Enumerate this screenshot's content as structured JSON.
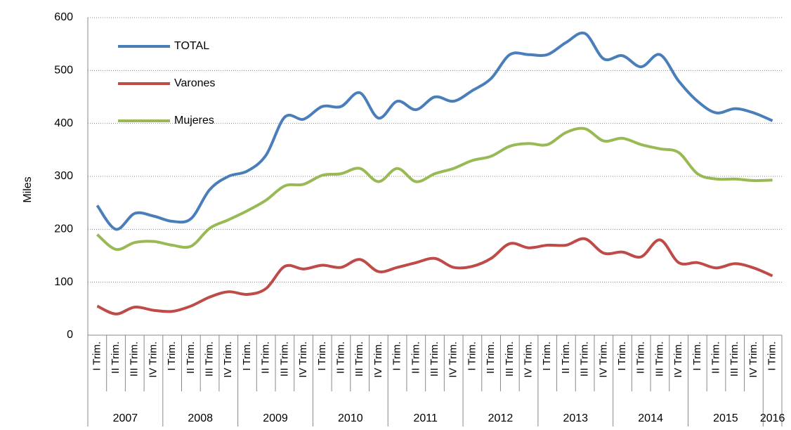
{
  "chart_data": {
    "type": "line",
    "y_label": "Miles",
    "categories": [
      "I Trim.",
      "II Trim.",
      "III Trim.",
      "IV Trim.",
      "I Trim.",
      "II Trim.",
      "III Trim.",
      "IV Trim.",
      "I Trim.",
      "II Trim.",
      "III Trim.",
      "IV Trim.",
      "I Trim.",
      "II Trim.",
      "III Trim.",
      "IV Trim.",
      "I Trim.",
      "II Trim.",
      "III Trim.",
      "IV Trim.",
      "I Trim.",
      "II Trim.",
      "III Trim.",
      "IV Trim.",
      "I Trim.",
      "II Trim.",
      "III Trim.",
      "IV Trim.",
      "I Trim.",
      "II Trim.",
      "III Trim.",
      "IV Trim.",
      "I Trim.",
      "II Trim.",
      "III Trim.",
      "IV Trim.",
      "I Trim."
    ],
    "group_labels": [
      "2007",
      "2008",
      "2009",
      "2010",
      "2011",
      "2012",
      "2013",
      "2014",
      "2015",
      "2016"
    ],
    "series": [
      {
        "name": "TOTAL",
        "color": "#4a7ebb",
        "values": [
          245,
          200,
          230,
          225,
          215,
          220,
          275,
          300,
          310,
          340,
          412,
          408,
          432,
          432,
          458,
          410,
          442,
          426,
          450,
          442,
          462,
          485,
          530,
          530,
          530,
          553,
          570,
          522,
          528,
          507,
          530,
          480,
          442,
          420,
          428,
          420,
          405
        ]
      },
      {
        "name": "Varones",
        "color": "#be4b48",
        "values": [
          55,
          40,
          53,
          47,
          45,
          55,
          72,
          82,
          77,
          88,
          130,
          125,
          132,
          128,
          143,
          120,
          128,
          137,
          145,
          128,
          130,
          145,
          173,
          165,
          170,
          170,
          182,
          155,
          157,
          148,
          180,
          137,
          137,
          127,
          135,
          127,
          112
        ]
      },
      {
        "name": "Mujeres",
        "color": "#98b954",
        "values": [
          190,
          162,
          175,
          177,
          170,
          168,
          202,
          218,
          235,
          255,
          282,
          285,
          302,
          305,
          315,
          290,
          315,
          290,
          305,
          315,
          330,
          338,
          357,
          362,
          360,
          383,
          390,
          367,
          372,
          360,
          352,
          345,
          305,
          295,
          295,
          292,
          293
        ]
      }
    ],
    "ylim": [
      0,
      600
    ],
    "yticks": [
      0,
      100,
      200,
      300,
      400,
      500,
      600
    ],
    "grid": true,
    "legend": "top-left"
  }
}
